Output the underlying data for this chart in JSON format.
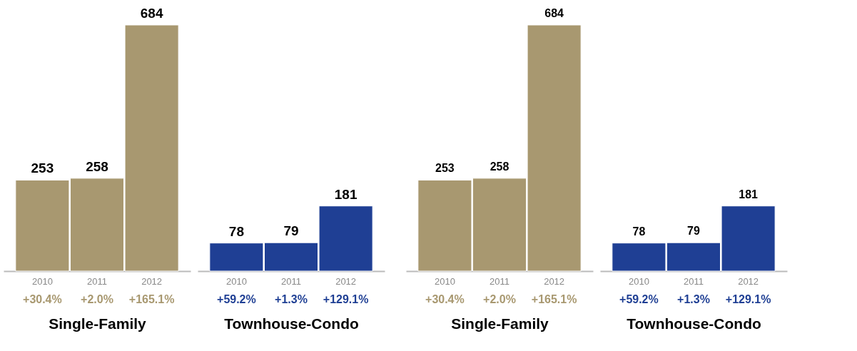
{
  "chart_data": [
    {
      "type": "bar",
      "categories": [
        "2010",
        "2011",
        "2012"
      ],
      "values": [
        253,
        258,
        684
      ],
      "color": "#a89870",
      "data_labels": true,
      "xlabel": "Single-Family",
      "annotations": [
        "+30.4%",
        "+2.0%",
        "+165.1%"
      ]
    },
    {
      "type": "bar",
      "categories": [
        "2010",
        "2011",
        "2012"
      ],
      "values": [
        78,
        79,
        181
      ],
      "color": "#1f3f94",
      "data_labels": true,
      "xlabel": "Townhouse-Condo",
      "annotations": [
        "+59.2%",
        "+1.3%",
        "+129.1%"
      ]
    },
    {
      "type": "bar",
      "categories": [
        "2010",
        "2011",
        "2012"
      ],
      "values": [
        253,
        258,
        684
      ],
      "color": "#a89870",
      "data_labels": true,
      "xlabel": "Single-Family",
      "annotations": [
        "+30.4%",
        "+2.0%",
        "+165.1%"
      ]
    },
    {
      "type": "bar",
      "categories": [
        "2010",
        "2011",
        "2012"
      ],
      "values": [
        78,
        79,
        181
      ],
      "color": "#1f3f94",
      "data_labels": true,
      "xlabel": "Townhouse-Condo",
      "annotations": [
        "+59.2%",
        "+1.3%",
        "+129.1%"
      ]
    }
  ]
}
